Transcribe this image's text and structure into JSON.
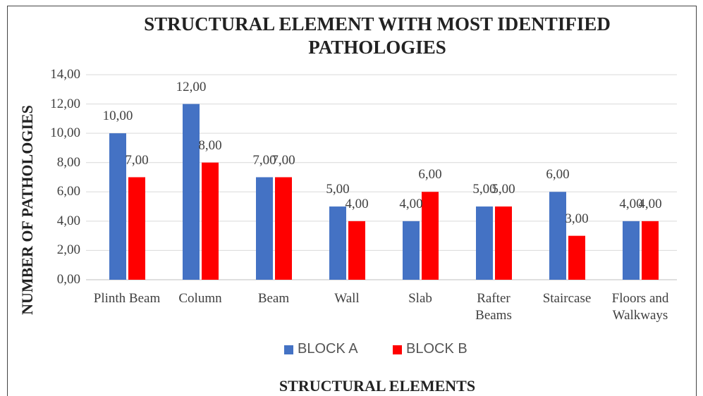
{
  "chart_data": {
    "type": "bar",
    "title": "STRUCTURAL ELEMENT WITH MOST IDENTIFIED PATHOLOGIES",
    "x_label": "STRUCTURAL ELEMENTS",
    "y_label": "NUMBER OF PATHOLOGIES",
    "categories": [
      "Plinth Beam",
      "Column",
      "Beam",
      "Wall",
      "Slab",
      "Rafter Beams",
      "Staircase",
      "Floors and Walkways"
    ],
    "series": [
      {
        "name": "BLOCK A",
        "color": "#4472c4",
        "values": [
          10,
          12,
          7,
          5,
          4,
          5,
          6,
          4
        ],
        "value_labels": [
          "10,00",
          "12,00",
          "7,00",
          "5,00",
          "4,00",
          "5,00",
          "6,00",
          "4,00"
        ]
      },
      {
        "name": "BLOCK B",
        "color": "#ff0000",
        "values": [
          7,
          8,
          7,
          4,
          6,
          5,
          3,
          4
        ],
        "value_labels": [
          "7,00",
          "8,00",
          "7,00",
          "4,00",
          "6,00",
          "5,00",
          "3,00",
          "4,00"
        ]
      }
    ],
    "ylim": [
      0,
      14
    ],
    "yticks": [
      {
        "value": 0,
        "label": "0,00"
      },
      {
        "value": 2,
        "label": "2,00"
      },
      {
        "value": 4,
        "label": "4,00"
      },
      {
        "value": 6,
        "label": "6,00"
      },
      {
        "value": 8,
        "label": "8,00"
      },
      {
        "value": 10,
        "label": "10,00"
      },
      {
        "value": 12,
        "label": "12,00"
      },
      {
        "value": 14,
        "label": "14,00"
      }
    ],
    "grid": true,
    "legend": "bottom"
  }
}
